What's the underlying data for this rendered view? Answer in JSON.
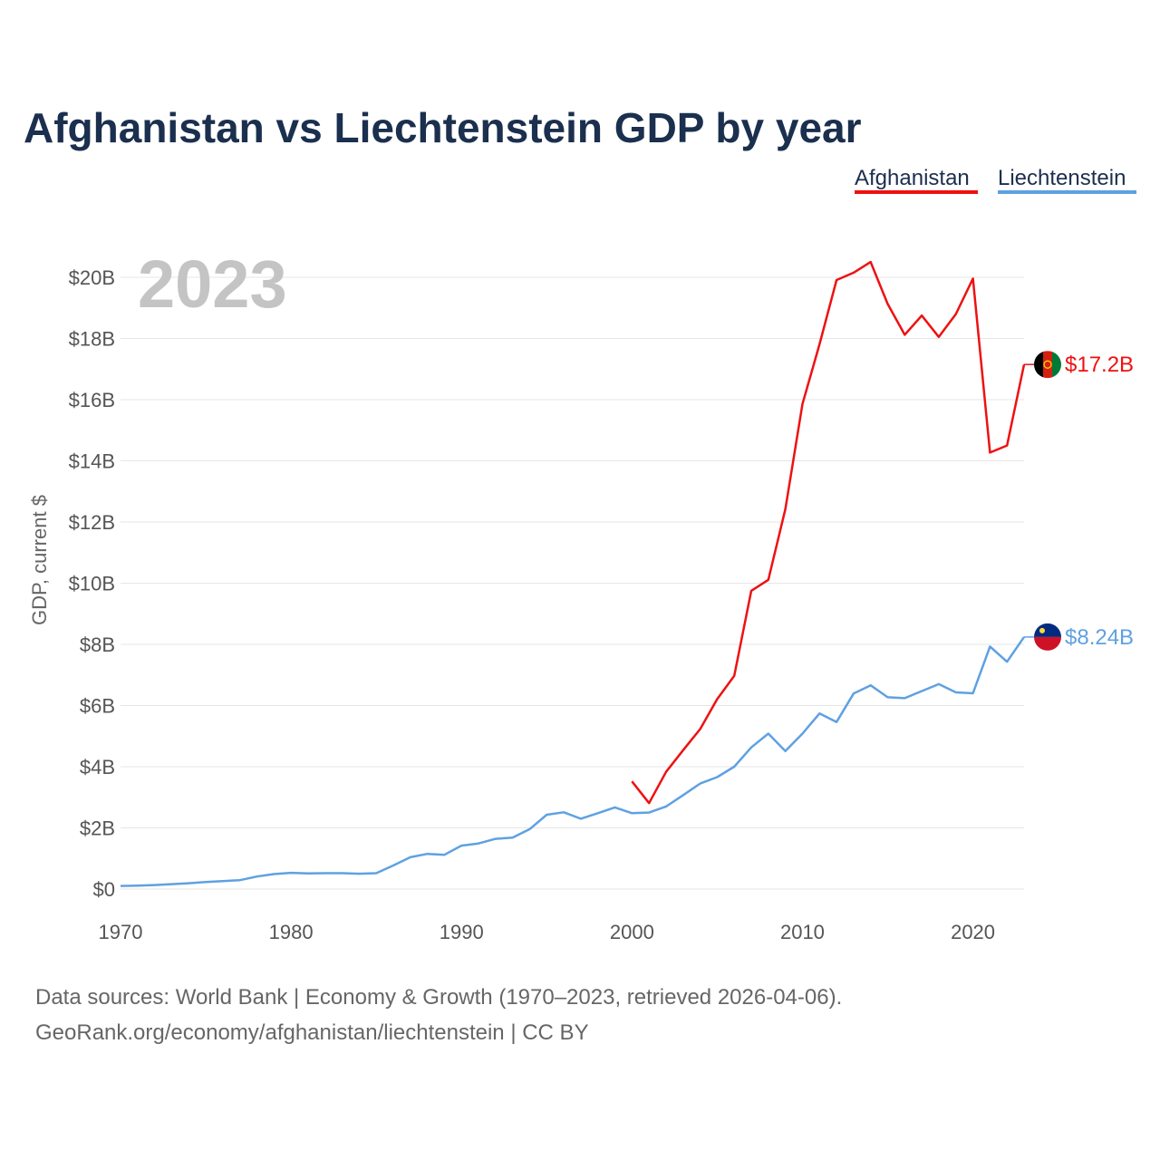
{
  "chart_data": {
    "type": "line",
    "title": "Afghanistan vs Liechtenstein GDP by year",
    "ylabel": "GDP, current $",
    "xlabel": "",
    "year_label": "2023",
    "xlim": [
      1970,
      2023
    ],
    "ylim": [
      0,
      20000000000
    ],
    "x_ticks": [
      1970,
      1980,
      1990,
      2000,
      2010,
      2020
    ],
    "y_ticks": [
      {
        "value": 0,
        "label": "$0"
      },
      {
        "value": 2000000000,
        "label": "$2B"
      },
      {
        "value": 4000000000,
        "label": "$4B"
      },
      {
        "value": 6000000000,
        "label": "$6B"
      },
      {
        "value": 8000000000,
        "label": "$8B"
      },
      {
        "value": 10000000000,
        "label": "$10B"
      },
      {
        "value": 12000000000,
        "label": "$12B"
      },
      {
        "value": 14000000000,
        "label": "$14B"
      },
      {
        "value": 16000000000,
        "label": "$16B"
      },
      {
        "value": 18000000000,
        "label": "$18B"
      },
      {
        "value": 20000000000,
        "label": "$20B"
      }
    ],
    "grid": true,
    "legend_position": "top-right",
    "colors": {
      "title": "#1b2f4e",
      "axis_text": "#555555",
      "grid": "#e6e6e6"
    },
    "series": [
      {
        "name": "Afghanistan",
        "color": "#ee1111",
        "end_label": "$17.2B",
        "flag_colors": [
          "#000000",
          "#d32011",
          "#007a36"
        ],
        "flag_icon": "afghanistan-flag-icon",
        "x": [
          2000,
          2001,
          2002,
          2003,
          2004,
          2005,
          2006,
          2007,
          2008,
          2009,
          2010,
          2011,
          2012,
          2013,
          2014,
          2015,
          2016,
          2017,
          2018,
          2019,
          2020,
          2021,
          2022,
          2023
        ],
        "values": [
          3520000000,
          2810000000,
          3830000000,
          4540000000,
          5230000000,
          6210000000,
          6970000000,
          9750000000,
          10110000000,
          12420000000,
          15860000000,
          17810000000,
          19910000000,
          20150000000,
          20500000000,
          19130000000,
          18120000000,
          18750000000,
          18050000000,
          18800000000,
          19960000000,
          14270000000,
          14500000000,
          17150000000
        ]
      },
      {
        "name": "Liechtenstein",
        "color": "#5fa1e1",
        "end_label": "$8.24B",
        "flag_colors": [
          "#002b7f",
          "#ce1126",
          "#ffd83d"
        ],
        "flag_icon": "liechtenstein-flag-icon",
        "x": [
          1970,
          1971,
          1972,
          1973,
          1974,
          1975,
          1976,
          1977,
          1978,
          1979,
          1980,
          1981,
          1982,
          1983,
          1984,
          1985,
          1986,
          1987,
          1988,
          1989,
          1990,
          1991,
          1992,
          1993,
          1994,
          1995,
          1996,
          1997,
          1998,
          1999,
          2000,
          2001,
          2002,
          2003,
          2004,
          2005,
          2006,
          2007,
          2008,
          2009,
          2010,
          2011,
          2012,
          2013,
          2014,
          2015,
          2016,
          2017,
          2018,
          2019,
          2020,
          2021,
          2022,
          2023
        ],
        "values": [
          100000000,
          110000000,
          130000000,
          160000000,
          190000000,
          230000000,
          260000000,
          290000000,
          410000000,
          490000000,
          530000000,
          510000000,
          520000000,
          520000000,
          500000000,
          520000000,
          770000000,
          1040000000,
          1150000000,
          1120000000,
          1420000000,
          1490000000,
          1640000000,
          1680000000,
          1960000000,
          2430000000,
          2510000000,
          2300000000,
          2480000000,
          2670000000,
          2480000000,
          2500000000,
          2700000000,
          3070000000,
          3450000000,
          3660000000,
          4000000000,
          4630000000,
          5080000000,
          4510000000,
          5080000000,
          5740000000,
          5460000000,
          6390000000,
          6660000000,
          6270000000,
          6240000000,
          6470000000,
          6700000000,
          6430000000,
          6400000000,
          7930000000,
          7430000000,
          8240000000
        ]
      }
    ]
  },
  "footer": {
    "line1": "Data sources: World Bank | Economy & Growth (1970–2023, retrieved 2026-04-06).",
    "line2": "GeoRank.org/economy/afghanistan/liechtenstein | CC BY"
  }
}
